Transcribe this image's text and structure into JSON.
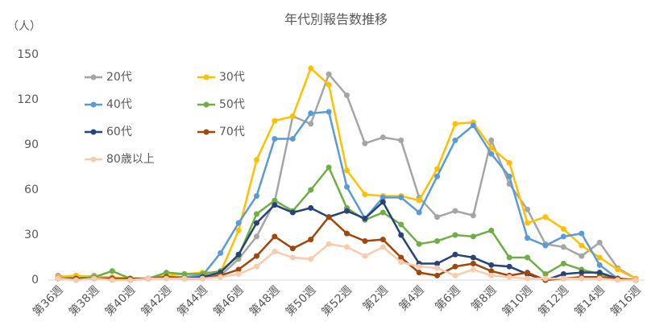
{
  "chart_data": {
    "type": "line",
    "title": "年代別報告数推移",
    "ylabel": "（人）",
    "categories": [
      "第36週",
      null,
      "第38週",
      null,
      "第40週",
      null,
      "第42週",
      null,
      "第44週",
      null,
      "第46週",
      null,
      "第48週",
      null,
      "第50週",
      null,
      "第52週",
      null,
      "第2週",
      null,
      "第4週",
      null,
      "第6週",
      null,
      "第8週",
      null,
      "第10週",
      null,
      "第12週",
      null,
      "第14週",
      null,
      "第16週"
    ],
    "ylim": [
      0,
      150
    ],
    "yticks": [
      0,
      30,
      60,
      90,
      120,
      150
    ],
    "grid": false,
    "series": [
      {
        "name": "20代",
        "color": "#a5a5a5",
        "values": [
          3,
          1,
          3,
          1,
          1,
          1,
          2,
          2,
          3,
          3,
          14,
          29,
          52,
          109,
          104,
          137,
          123,
          91,
          95,
          93,
          55,
          42,
          46,
          43,
          93,
          64,
          47,
          24,
          22,
          16,
          25,
          8,
          1
        ]
      },
      {
        "name": "30代",
        "color": "#ffc000",
        "values": [
          2,
          3,
          2,
          2,
          1,
          1,
          3,
          4,
          5,
          5,
          33,
          80,
          106,
          109,
          141,
          130,
          73,
          57,
          56,
          56,
          53,
          74,
          104,
          105,
          88,
          78,
          38,
          42,
          34,
          23,
          15,
          7,
          1
        ]
      },
      {
        "name": "40代",
        "color": "#5b9bd5",
        "values": [
          1,
          1,
          1,
          1,
          0,
          1,
          2,
          2,
          3,
          18,
          38,
          56,
          94,
          94,
          111,
          112,
          62,
          41,
          55,
          55,
          45,
          69,
          93,
          103,
          84,
          69,
          28,
          23,
          29,
          31,
          10,
          1,
          0
        ]
      },
      {
        "name": "50代",
        "color": "#70ad47",
        "values": [
          1,
          1,
          2,
          6,
          1,
          1,
          5,
          4,
          4,
          6,
          16,
          44,
          53,
          46,
          60,
          75,
          48,
          40,
          45,
          37,
          24,
          26,
          30,
          29,
          33,
          15,
          15,
          4,
          11,
          7,
          4,
          1,
          0
        ]
      },
      {
        "name": "60代",
        "color": "#264478",
        "values": [
          1,
          1,
          1,
          1,
          0,
          1,
          2,
          1,
          2,
          5,
          17,
          38,
          50,
          45,
          48,
          42,
          46,
          41,
          52,
          30,
          11,
          11,
          17,
          15,
          10,
          9,
          4,
          0,
          4,
          5,
          5,
          1,
          0
        ]
      },
      {
        "name": "70代",
        "color": "#9e480e",
        "values": [
          1,
          1,
          1,
          1,
          1,
          1,
          2,
          1,
          1,
          3,
          7,
          16,
          29,
          21,
          27,
          42,
          31,
          26,
          27,
          15,
          5,
          3,
          9,
          11,
          6,
          3,
          5,
          0,
          1,
          2,
          2,
          1,
          0
        ]
      },
      {
        "name": "80歳以上",
        "color": "#f8cbad",
        "values": [
          1,
          0,
          1,
          0,
          0,
          1,
          1,
          1,
          1,
          2,
          4,
          9,
          19,
          15,
          14,
          24,
          22,
          16,
          22,
          12,
          9,
          8,
          3,
          7,
          3,
          2,
          1,
          1,
          1,
          1,
          1,
          0,
          0
        ]
      }
    ]
  }
}
